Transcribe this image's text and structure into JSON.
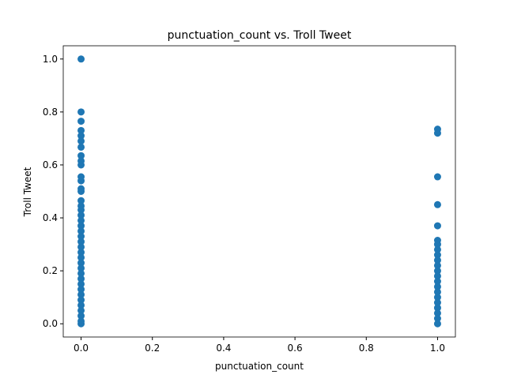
{
  "chart_data": {
    "type": "scatter",
    "title": "punctuation_count vs. Troll Tweet",
    "xlabel": "punctuation_count",
    "ylabel": "Troll Tweet",
    "color": "#1f77b4",
    "x": [
      0,
      0,
      0,
      0,
      0,
      0,
      0,
      0,
      0,
      0,
      0,
      0,
      0,
      0,
      0,
      0,
      0,
      0,
      0,
      0,
      0,
      0,
      0,
      0,
      0,
      0,
      0,
      0,
      0,
      0,
      0,
      0,
      0,
      0,
      0,
      0,
      0,
      0,
      0,
      1,
      1,
      1,
      1,
      1,
      1,
      1,
      1,
      1,
      1,
      1,
      1,
      1,
      1,
      1,
      1,
      1,
      1,
      1,
      1,
      1,
      1
    ],
    "y": [
      1.0,
      0.8,
      0.765,
      0.73,
      0.71,
      0.69,
      0.667,
      0.635,
      0.615,
      0.6,
      0.555,
      0.54,
      0.51,
      0.5,
      0.465,
      0.445,
      0.43,
      0.41,
      0.39,
      0.37,
      0.35,
      0.33,
      0.31,
      0.29,
      0.27,
      0.25,
      0.23,
      0.21,
      0.19,
      0.17,
      0.15,
      0.13,
      0.11,
      0.09,
      0.07,
      0.05,
      0.03,
      0.01,
      0.0,
      0.735,
      0.72,
      0.555,
      0.45,
      0.37,
      0.315,
      0.3,
      0.28,
      0.26,
      0.24,
      0.22,
      0.2,
      0.18,
      0.16,
      0.14,
      0.12,
      0.1,
      0.08,
      0.06,
      0.04,
      0.02,
      0.0
    ],
    "xlim": [
      -0.05,
      1.05
    ],
    "ylim": [
      -0.05,
      1.05
    ],
    "xticks": [
      {
        "value": 0,
        "label": "0.0"
      },
      {
        "value": 0.2,
        "label": "0.2"
      },
      {
        "value": 0.4,
        "label": "0.4"
      },
      {
        "value": 0.6,
        "label": "0.6"
      },
      {
        "value": 0.8,
        "label": "0.8"
      },
      {
        "value": 1,
        "label": "1.0"
      }
    ],
    "yticks": [
      {
        "value": 0,
        "label": "0.0"
      },
      {
        "value": 0.2,
        "label": "0.2"
      },
      {
        "value": 0.4,
        "label": "0.4"
      },
      {
        "value": 0.6,
        "label": "0.6"
      },
      {
        "value": 0.8,
        "label": "0.8"
      },
      {
        "value": 1,
        "label": "1.0"
      }
    ]
  }
}
